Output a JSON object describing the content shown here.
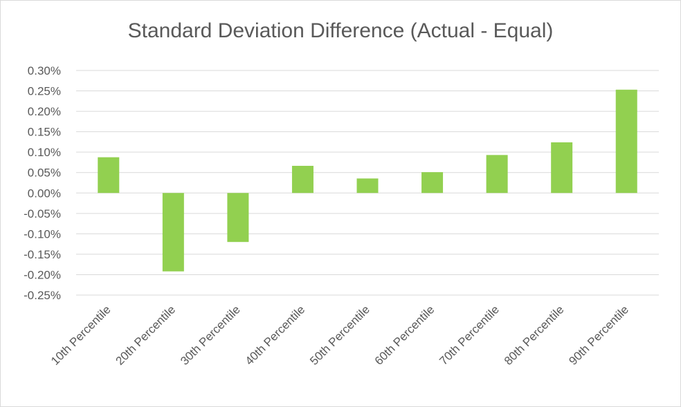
{
  "chart_data": {
    "type": "bar",
    "title": "Standard Deviation Difference (Actual - Equal)",
    "categories": [
      "10th Percentile",
      "20th Percentile",
      "30th Percentile",
      "40th Percentile",
      "50th Percentile",
      "60th Percentile",
      "70th Percentile",
      "80th Percentile",
      "90th Percentile"
    ],
    "values": [
      0.0875,
      -0.192,
      -0.12,
      0.0665,
      0.0355,
      0.051,
      0.093,
      0.124,
      0.253
    ],
    "y_ticks": [
      0.3,
      0.25,
      0.2,
      0.15,
      0.1,
      0.05,
      0.0,
      -0.05,
      -0.1,
      -0.15,
      -0.2,
      -0.25
    ],
    "y_tick_labels": [
      "0.30%",
      "0.25%",
      "0.20%",
      "0.15%",
      "0.10%",
      "0.05%",
      "0.00%",
      "-0.05%",
      "-0.10%",
      "-0.15%",
      "-0.20%",
      "-0.25%"
    ],
    "ylim": [
      -0.25,
      0.3
    ],
    "y_unit": "%",
    "xlabel": "",
    "ylabel": "",
    "grid": true,
    "legend": "none",
    "bar_color": "#92d050",
    "grid_color": "#d9d9d9",
    "text_color": "#595959"
  }
}
